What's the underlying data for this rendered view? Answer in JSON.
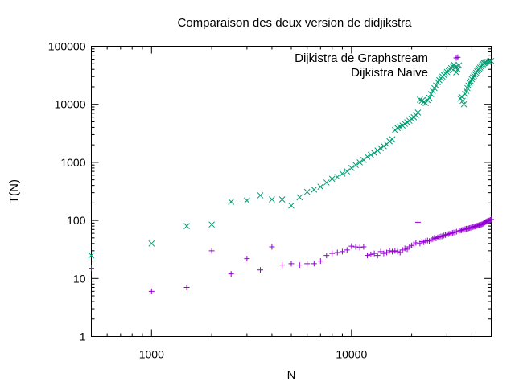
{
  "chart_data": {
    "type": "scatter",
    "title": "Comparaison des deux version de didjikstra",
    "xlabel": "N",
    "ylabel": "T(N)",
    "xscale": "log",
    "yscale": "log",
    "xlim": [
      500,
      50000
    ],
    "ylim": [
      1,
      100000
    ],
    "x_ticks": [
      1000,
      10000
    ],
    "x_tick_labels": [
      "1000",
      "10000"
    ],
    "y_ticks": [
      1,
      10,
      100,
      1000,
      10000,
      100000
    ],
    "y_tick_labels": [
      "1",
      "10",
      "100",
      "1000",
      "10000",
      "100000"
    ],
    "grid": false,
    "legend_position": "top-right",
    "series": [
      {
        "name": "Dijkistra de Graphstream",
        "marker": "plus",
        "color": "#9400d3",
        "points": [
          [
            500,
            15
          ],
          [
            1000,
            6
          ],
          [
            1500,
            7
          ],
          [
            2000,
            30
          ],
          [
            2500,
            12
          ],
          [
            3000,
            22
          ],
          [
            3500,
            14
          ],
          [
            4000,
            35
          ],
          [
            4500,
            17
          ],
          [
            5000,
            18
          ],
          [
            5500,
            17
          ],
          [
            6000,
            18
          ],
          [
            6500,
            18
          ],
          [
            7000,
            20
          ],
          [
            7500,
            25
          ],
          [
            8000,
            27
          ],
          [
            8500,
            28
          ],
          [
            9000,
            29
          ],
          [
            9500,
            31
          ],
          [
            10000,
            36
          ],
          [
            10500,
            35
          ],
          [
            11000,
            34
          ],
          [
            11500,
            35
          ],
          [
            12000,
            25
          ],
          [
            12500,
            26
          ],
          [
            13000,
            27
          ],
          [
            13500,
            25
          ],
          [
            14000,
            29
          ],
          [
            14500,
            27
          ],
          [
            15000,
            28
          ],
          [
            15500,
            30
          ],
          [
            16000,
            29
          ],
          [
            16500,
            30
          ],
          [
            17000,
            29
          ],
          [
            17500,
            28
          ],
          [
            18000,
            31
          ],
          [
            18500,
            33
          ],
          [
            19000,
            32
          ],
          [
            19500,
            35
          ],
          [
            20000,
            37
          ],
          [
            20500,
            39
          ],
          [
            21000,
            41
          ],
          [
            21500,
            93
          ],
          [
            22000,
            40
          ],
          [
            22500,
            43
          ],
          [
            23000,
            42
          ],
          [
            23500,
            44
          ],
          [
            24000,
            45
          ],
          [
            24500,
            44
          ],
          [
            25000,
            46
          ],
          [
            25500,
            48
          ],
          [
            26000,
            50
          ],
          [
            26500,
            49
          ],
          [
            27000,
            51
          ],
          [
            27500,
            52
          ],
          [
            28000,
            53
          ],
          [
            28500,
            53
          ],
          [
            29000,
            55
          ],
          [
            29500,
            56
          ],
          [
            30000,
            57
          ],
          [
            30500,
            58
          ],
          [
            31000,
            59
          ],
          [
            31500,
            60
          ],
          [
            32000,
            61
          ],
          [
            32500,
            62
          ],
          [
            33000,
            63
          ],
          [
            33500,
            64
          ],
          [
            34000,
            64500
          ],
          [
            34500,
            66
          ],
          [
            35000,
            67
          ],
          [
            35500,
            68
          ],
          [
            36000,
            69
          ],
          [
            36500,
            70
          ],
          [
            37000,
            71
          ],
          [
            37500,
            72
          ],
          [
            38000,
            72
          ],
          [
            38500,
            73
          ],
          [
            39000,
            74
          ],
          [
            39500,
            75
          ],
          [
            40000,
            76
          ],
          [
            40500,
            77
          ],
          [
            41000,
            78
          ],
          [
            41500,
            79
          ],
          [
            42000,
            80
          ],
          [
            42500,
            81
          ],
          [
            43000,
            82
          ],
          [
            43500,
            83
          ],
          [
            44000,
            84
          ],
          [
            44500,
            85
          ],
          [
            45000,
            86
          ],
          [
            45500,
            88
          ],
          [
            46000,
            90
          ],
          [
            46500,
            92
          ],
          [
            47000,
            94
          ],
          [
            47500,
            96
          ],
          [
            48000,
            98
          ],
          [
            48500,
            99
          ],
          [
            49000,
            100
          ],
          [
            49500,
            102
          ],
          [
            50000,
            104
          ]
        ]
      },
      {
        "name": "Dijkistra Naive",
        "marker": "cross",
        "color": "#009e73",
        "points": [
          [
            500,
            25
          ],
          [
            1000,
            40
          ],
          [
            1500,
            80
          ],
          [
            2000,
            85
          ],
          [
            2500,
            210
          ],
          [
            3000,
            220
          ],
          [
            3500,
            270
          ],
          [
            4000,
            230
          ],
          [
            4500,
            230
          ],
          [
            5000,
            180
          ],
          [
            5500,
            250
          ],
          [
            6000,
            310
          ],
          [
            6500,
            340
          ],
          [
            7000,
            380
          ],
          [
            7500,
            450
          ],
          [
            8000,
            520
          ],
          [
            8500,
            560
          ],
          [
            9000,
            640
          ],
          [
            9500,
            700
          ],
          [
            10000,
            800
          ],
          [
            10500,
            900
          ],
          [
            11000,
            1000
          ],
          [
            11500,
            1100
          ],
          [
            12000,
            1250
          ],
          [
            12500,
            1350
          ],
          [
            13000,
            1450
          ],
          [
            13500,
            1600
          ],
          [
            14000,
            1750
          ],
          [
            14500,
            1900
          ],
          [
            15000,
            2050
          ],
          [
            15500,
            2300
          ],
          [
            16000,
            2500
          ],
          [
            16500,
            3600
          ],
          [
            17000,
            3900
          ],
          [
            17500,
            4100
          ],
          [
            18000,
            4300
          ],
          [
            18500,
            4600
          ],
          [
            19000,
            4900
          ],
          [
            19500,
            5200
          ],
          [
            20000,
            5600
          ],
          [
            20500,
            6000
          ],
          [
            21000,
            6500
          ],
          [
            21500,
            7200
          ],
          [
            22000,
            12000
          ],
          [
            22500,
            11500
          ],
          [
            23000,
            11000
          ],
          [
            23500,
            10500
          ],
          [
            24000,
            11800
          ],
          [
            24500,
            13000
          ],
          [
            25000,
            15000
          ],
          [
            25500,
            17000
          ],
          [
            26000,
            19000
          ],
          [
            26500,
            21000
          ],
          [
            27000,
            24000
          ],
          [
            27500,
            26000
          ],
          [
            28000,
            28000
          ],
          [
            28500,
            30000
          ],
          [
            29000,
            32000
          ],
          [
            29500,
            34000
          ],
          [
            30000,
            36000
          ],
          [
            30500,
            38000
          ],
          [
            31000,
            40000
          ],
          [
            31500,
            42000
          ],
          [
            32000,
            45000
          ],
          [
            32500,
            48000
          ],
          [
            33000,
            43000
          ],
          [
            33500,
            45000
          ],
          [
            34000,
            40000
          ],
          [
            34500,
            47000
          ],
          [
            35000,
            12500
          ],
          [
            35500,
            13500
          ],
          [
            36000,
            11500
          ],
          [
            36500,
            10000
          ],
          [
            37000,
            15000
          ],
          [
            37500,
            17000
          ],
          [
            38000,
            19000
          ],
          [
            38500,
            21000
          ],
          [
            39000,
            23000
          ],
          [
            39500,
            25000
          ],
          [
            40000,
            27000
          ],
          [
            40500,
            29000
          ],
          [
            41000,
            31000
          ],
          [
            41500,
            33000
          ],
          [
            42000,
            35000
          ],
          [
            42500,
            37000
          ],
          [
            43000,
            39000
          ],
          [
            43500,
            41000
          ],
          [
            44000,
            43000
          ],
          [
            44500,
            45000
          ],
          [
            45000,
            47000
          ],
          [
            45500,
            49000
          ],
          [
            46000,
            51000
          ],
          [
            46500,
            52000
          ],
          [
            47000,
            53000
          ],
          [
            48000,
            54000
          ],
          [
            49000,
            55000
          ],
          [
            50000,
            56000
          ]
        ]
      }
    ]
  }
}
